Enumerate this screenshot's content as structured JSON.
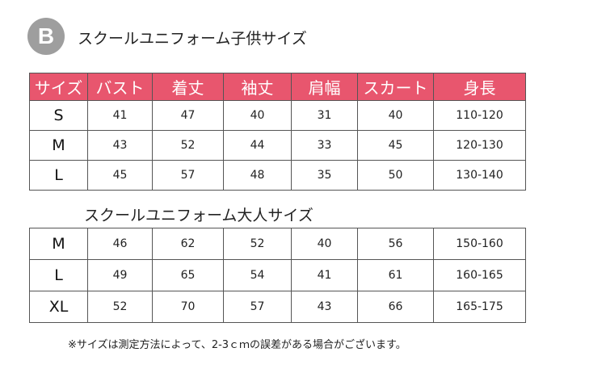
{
  "badge": "B",
  "kids_title": "スクールユニフォーム子供サイズ",
  "adult_title": "スクールユニフォーム大人サイズ",
  "headers": [
    "サイズ",
    "バスト",
    "着丈",
    "袖丈",
    "肩幅",
    "スカート",
    "身長"
  ],
  "kids_rows": [
    [
      "S",
      "41",
      "47",
      "40",
      "31",
      "40",
      "110-120"
    ],
    [
      "M",
      "43",
      "52",
      "44",
      "33",
      "45",
      "120-130"
    ],
    [
      "L",
      "45",
      "57",
      "48",
      "35",
      "50",
      "130-140"
    ]
  ],
  "adult_rows": [
    [
      "M",
      "46",
      "62",
      "52",
      "40",
      "56",
      "150-160"
    ],
    [
      "L",
      "49",
      "65",
      "54",
      "41",
      "61",
      "160-165"
    ],
    [
      "XL",
      "52",
      "70",
      "57",
      "43",
      "66",
      "165-175"
    ]
  ],
  "note": "※サイズは測定方法によって、2-3ｃｍの誤差がある場合がございます。",
  "colors": {
    "header_bg": "#e8566e",
    "badge_bg": "#9e9e9e"
  }
}
